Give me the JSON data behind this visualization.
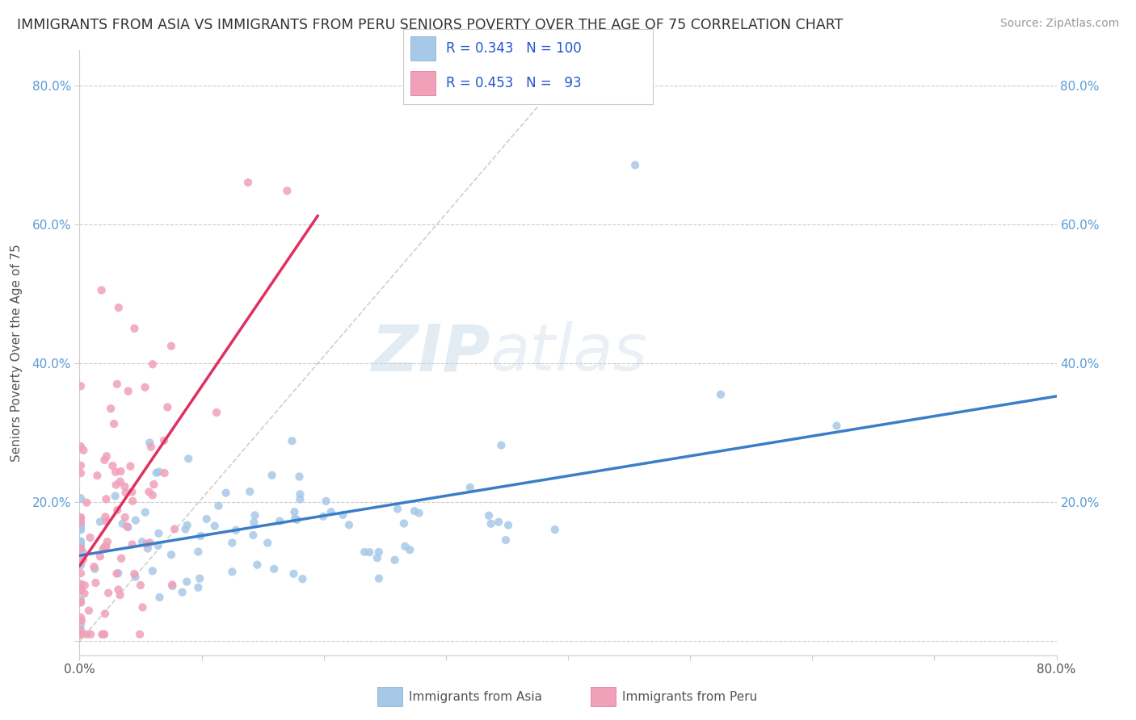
{
  "title": "IMMIGRANTS FROM ASIA VS IMMIGRANTS FROM PERU SENIORS POVERTY OVER THE AGE OF 75 CORRELATION CHART",
  "source": "Source: ZipAtlas.com",
  "ylabel": "Seniors Poverty Over the Age of 75",
  "xlim": [
    0,
    0.8
  ],
  "ylim": [
    -0.02,
    0.85
  ],
  "legend_asia_R": "0.343",
  "legend_asia_N": "100",
  "legend_peru_R": "0.453",
  "legend_peru_N": "93",
  "blue_scatter_color": "#A8C8E8",
  "pink_scatter_color": "#F0A0B8",
  "blue_line_color": "#3A7EC8",
  "pink_line_color": "#E03060",
  "ref_line_color": "#CCCCCC",
  "background_color": "#FFFFFF",
  "grid_color": "#CCCCCC",
  "title_color": "#333333",
  "watermark_color": "#D0DCE8",
  "tick_color": "#5B9BD5",
  "ytick_vals": [
    0.0,
    0.2,
    0.4,
    0.6,
    0.8
  ],
  "ytick_labels": [
    "",
    "20.0%",
    "40.0%",
    "60.0%",
    "80.0%"
  ]
}
